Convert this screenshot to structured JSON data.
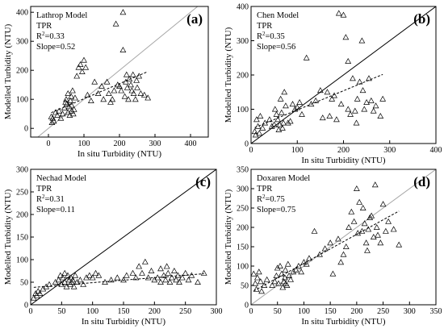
{
  "chart_data": [
    {
      "type": "scatter",
      "panel": "(a)",
      "model": "Lathrop Model",
      "band": "TPR",
      "r2_label": "R",
      "r2_sup": "2",
      "r2_value": "=0.33",
      "slope_text": "Slope=0.52",
      "xlabel": "In situ Turbidity (NTU)",
      "ylabel": "Modelled Turbidity (NTU)",
      "xlim": [
        -50,
        450
      ],
      "ylim": [
        -30,
        420
      ],
      "xticks": [
        0,
        100,
        200,
        300,
        400
      ],
      "yticks": [
        0,
        100,
        200,
        300,
        400
      ],
      "one_to_one_color": "#a6a6a6",
      "fit_line": {
        "slope": 0.52,
        "intercept": 50
      },
      "points": [
        [
          8,
          40
        ],
        [
          10,
          20
        ],
        [
          12,
          35
        ],
        [
          15,
          25
        ],
        [
          20,
          55
        ],
        [
          25,
          45
        ],
        [
          30,
          60
        ],
        [
          35,
          35
        ],
        [
          40,
          50
        ],
        [
          45,
          70
        ],
        [
          48,
          90
        ],
        [
          50,
          100
        ],
        [
          52,
          85
        ],
        [
          55,
          120
        ],
        [
          55,
          55
        ],
        [
          58,
          75
        ],
        [
          60,
          45
        ],
        [
          62,
          95
        ],
        [
          64,
          110
        ],
        [
          65,
          80
        ],
        [
          66,
          60
        ],
        [
          68,
          130
        ],
        [
          70,
          50
        ],
        [
          72,
          65
        ],
        [
          75,
          105
        ],
        [
          80,
          180
        ],
        [
          85,
          210
        ],
        [
          90,
          220
        ],
        [
          95,
          195
        ],
        [
          100,
          235
        ],
        [
          105,
          210
        ],
        [
          110,
          115
        ],
        [
          120,
          95
        ],
        [
          130,
          160
        ],
        [
          140,
          120
        ],
        [
          150,
          145
        ],
        [
          155,
          100
        ],
        [
          165,
          160
        ],
        [
          170,
          120
        ],
        [
          175,
          90
        ],
        [
          180,
          100
        ],
        [
          185,
          130
        ],
        [
          190,
          360
        ],
        [
          195,
          150
        ],
        [
          200,
          145
        ],
        [
          205,
          130
        ],
        [
          210,
          270
        ],
        [
          210,
          400
        ],
        [
          215,
          110
        ],
        [
          218,
          160
        ],
        [
          220,
          185
        ],
        [
          222,
          140
        ],
        [
          225,
          100
        ],
        [
          228,
          170
        ],
        [
          232,
          150
        ],
        [
          235,
          130
        ],
        [
          238,
          185
        ],
        [
          240,
          120
        ],
        [
          245,
          100
        ],
        [
          248,
          165
        ],
        [
          250,
          140
        ],
        [
          255,
          180
        ],
        [
          260,
          120
        ],
        [
          270,
          115
        ],
        [
          280,
          105
        ]
      ]
    },
    {
      "type": "scatter",
      "panel": "(b)",
      "model": "Chen Model",
      "band": "TPR",
      "r2_label": "R",
      "r2_sup": "2",
      "r2_value": "=0.35",
      "slope_text": "Slope=0.56",
      "xlabel": "In situ Turbidity (NTU)",
      "ylabel": "Modelled Turbidity (NTU)",
      "xlim": [
        0,
        400
      ],
      "ylim": [
        0,
        400
      ],
      "xticks": [
        0,
        100,
        200,
        300,
        400
      ],
      "yticks": [
        0,
        100,
        200,
        300,
        400
      ],
      "one_to_one_color": "#000000",
      "fit_line": {
        "slope": 0.56,
        "intercept": 42
      },
      "points": [
        [
          8,
          35
        ],
        [
          10,
          25
        ],
        [
          12,
          70
        ],
        [
          15,
          50
        ],
        [
          18,
          30
        ],
        [
          20,
          80
        ],
        [
          25,
          45
        ],
        [
          30,
          60
        ],
        [
          40,
          70
        ],
        [
          45,
          50
        ],
        [
          50,
          55
        ],
        [
          52,
          100
        ],
        [
          55,
          85
        ],
        [
          58,
          70
        ],
        [
          60,
          40
        ],
        [
          62,
          55
        ],
        [
          64,
          130
        ],
        [
          66,
          90
        ],
        [
          68,
          45
        ],
        [
          70,
          60
        ],
        [
          72,
          150
        ],
        [
          75,
          110
        ],
        [
          80,
          60
        ],
        [
          85,
          65
        ],
        [
          90,
          115
        ],
        [
          95,
          100
        ],
        [
          100,
          105
        ],
        [
          105,
          120
        ],
        [
          110,
          85
        ],
        [
          120,
          250
        ],
        [
          130,
          115
        ],
        [
          140,
          125
        ],
        [
          150,
          155
        ],
        [
          155,
          75
        ],
        [
          165,
          150
        ],
        [
          170,
          80
        ],
        [
          175,
          130
        ],
        [
          180,
          140
        ],
        [
          185,
          70
        ],
        [
          190,
          380
        ],
        [
          195,
          115
        ],
        [
          200,
          375
        ],
        [
          205,
          310
        ],
        [
          210,
          100
        ],
        [
          210,
          240
        ],
        [
          215,
          85
        ],
        [
          220,
          190
        ],
        [
          225,
          95
        ],
        [
          228,
          60
        ],
        [
          230,
          130
        ],
        [
          235,
          180
        ],
        [
          240,
          300
        ],
        [
          242,
          155
        ],
        [
          245,
          100
        ],
        [
          250,
          120
        ],
        [
          255,
          190
        ],
        [
          260,
          125
        ],
        [
          265,
          95
        ],
        [
          270,
          110
        ],
        [
          280,
          80
        ],
        [
          285,
          130
        ]
      ]
    },
    {
      "type": "scatter",
      "panel": "(c)",
      "model": "Nechad Model",
      "band": "TPR",
      "r2_label": "R",
      "r2_sup": "2",
      "r2_value": "=0.31",
      "slope_text": "Slope=0.11",
      "xlabel": "In situ Turbidity (NTU)",
      "ylabel": "Modelled Turbidity (NTU)",
      "xlim": [
        0,
        300
      ],
      "ylim": [
        0,
        300
      ],
      "xticks": [
        0,
        50,
        100,
        150,
        200,
        250,
        300
      ],
      "yticks": [
        0,
        50,
        100,
        150,
        200,
        250,
        300
      ],
      "one_to_one_color": "#000000",
      "fit_line": {
        "slope": 0.11,
        "intercept": 38
      },
      "points": [
        [
          5,
          15
        ],
        [
          8,
          25
        ],
        [
          10,
          20
        ],
        [
          12,
          30
        ],
        [
          15,
          25
        ],
        [
          20,
          35
        ],
        [
          25,
          40
        ],
        [
          30,
          45
        ],
        [
          40,
          50
        ],
        [
          45,
          55
        ],
        [
          48,
          65
        ],
        [
          50,
          45
        ],
        [
          52,
          60
        ],
        [
          55,
          70
        ],
        [
          55,
          50
        ],
        [
          58,
          40
        ],
        [
          60,
          65
        ],
        [
          62,
          55
        ],
        [
          64,
          45
        ],
        [
          65,
          60
        ],
        [
          66,
          50
        ],
        [
          68,
          55
        ],
        [
          70,
          40
        ],
        [
          72,
          65
        ],
        [
          75,
          50
        ],
        [
          80,
          55
        ],
        [
          85,
          45
        ],
        [
          90,
          60
        ],
        [
          95,
          65
        ],
        [
          100,
          60
        ],
        [
          105,
          70
        ],
        [
          110,
          65
        ],
        [
          120,
          50
        ],
        [
          130,
          55
        ],
        [
          140,
          60
        ],
        [
          150,
          55
        ],
        [
          155,
          65
        ],
        [
          165,
          70
        ],
        [
          170,
          60
        ],
        [
          175,
          85
        ],
        [
          180,
          70
        ],
        [
          185,
          95
        ],
        [
          190,
          60
        ],
        [
          195,
          75
        ],
        [
          200,
          55
        ],
        [
          205,
          60
        ],
        [
          210,
          80
        ],
        [
          210,
          50
        ],
        [
          215,
          65
        ],
        [
          218,
          55
        ],
        [
          220,
          85
        ],
        [
          222,
          70
        ],
        [
          225,
          50
        ],
        [
          228,
          60
        ],
        [
          232,
          75
        ],
        [
          235,
          55
        ],
        [
          238,
          65
        ],
        [
          240,
          50
        ],
        [
          245,
          60
        ],
        [
          250,
          70
        ],
        [
          255,
          55
        ],
        [
          260,
          65
        ],
        [
          270,
          50
        ],
        [
          280,
          70
        ]
      ]
    },
    {
      "type": "scatter",
      "panel": "(d)",
      "model": "Doxaren Model",
      "band": "TPR",
      "r2_label": "R",
      "r2_sup": "2",
      "r2_value": "=0.75",
      "slope_text": "Slope=0.75",
      "xlabel": "In situ Turbidity (NTU)",
      "ylabel": "Modelled Turbidity (NTU)",
      "xlim": [
        0,
        350
      ],
      "ylim": [
        0,
        350
      ],
      "xticks": [
        0,
        50,
        100,
        150,
        200,
        250,
        300,
        350
      ],
      "yticks": [
        0,
        50,
        100,
        150,
        200,
        250,
        300,
        350
      ],
      "one_to_one_color": "#a6a6a6",
      "fit_line": {
        "slope": 0.75,
        "intercept": 32
      },
      "points": [
        [
          5,
          80
        ],
        [
          8,
          55
        ],
        [
          10,
          40
        ],
        [
          12,
          70
        ],
        [
          15,
          85
        ],
        [
          18,
          60
        ],
        [
          20,
          35
        ],
        [
          25,
          50
        ],
        [
          30,
          65
        ],
        [
          40,
          50
        ],
        [
          45,
          60
        ],
        [
          48,
          75
        ],
        [
          50,
          95
        ],
        [
          52,
          55
        ],
        [
          55,
          100
        ],
        [
          58,
          80
        ],
        [
          60,
          45
        ],
        [
          62,
          60
        ],
        [
          64,
          70
        ],
        [
          65,
          90
        ],
        [
          66,
          55
        ],
        [
          68,
          50
        ],
        [
          70,
          105
        ],
        [
          72,
          75
        ],
        [
          75,
          65
        ],
        [
          80,
          85
        ],
        [
          85,
          90
        ],
        [
          90,
          100
        ],
        [
          95,
          85
        ],
        [
          100,
          110
        ],
        [
          105,
          105
        ],
        [
          110,
          120
        ],
        [
          120,
          190
        ],
        [
          130,
          130
        ],
        [
          140,
          145
        ],
        [
          150,
          160
        ],
        [
          155,
          80
        ],
        [
          165,
          170
        ],
        [
          170,
          110
        ],
        [
          175,
          130
        ],
        [
          180,
          150
        ],
        [
          185,
          200
        ],
        [
          190,
          240
        ],
        [
          195,
          215
        ],
        [
          200,
          300
        ],
        [
          202,
          185
        ],
        [
          205,
          265
        ],
        [
          210,
          190
        ],
        [
          212,
          250
        ],
        [
          215,
          210
        ],
        [
          218,
          160
        ],
        [
          220,
          140
        ],
        [
          222,
          195
        ],
        [
          225,
          225
        ],
        [
          228,
          230
        ],
        [
          232,
          175
        ],
        [
          235,
          310
        ],
        [
          238,
          200
        ],
        [
          240,
          180
        ],
        [
          245,
          160
        ],
        [
          250,
          260
        ],
        [
          255,
          190
        ],
        [
          260,
          215
        ],
        [
          270,
          195
        ],
        [
          280,
          155
        ]
      ]
    }
  ]
}
